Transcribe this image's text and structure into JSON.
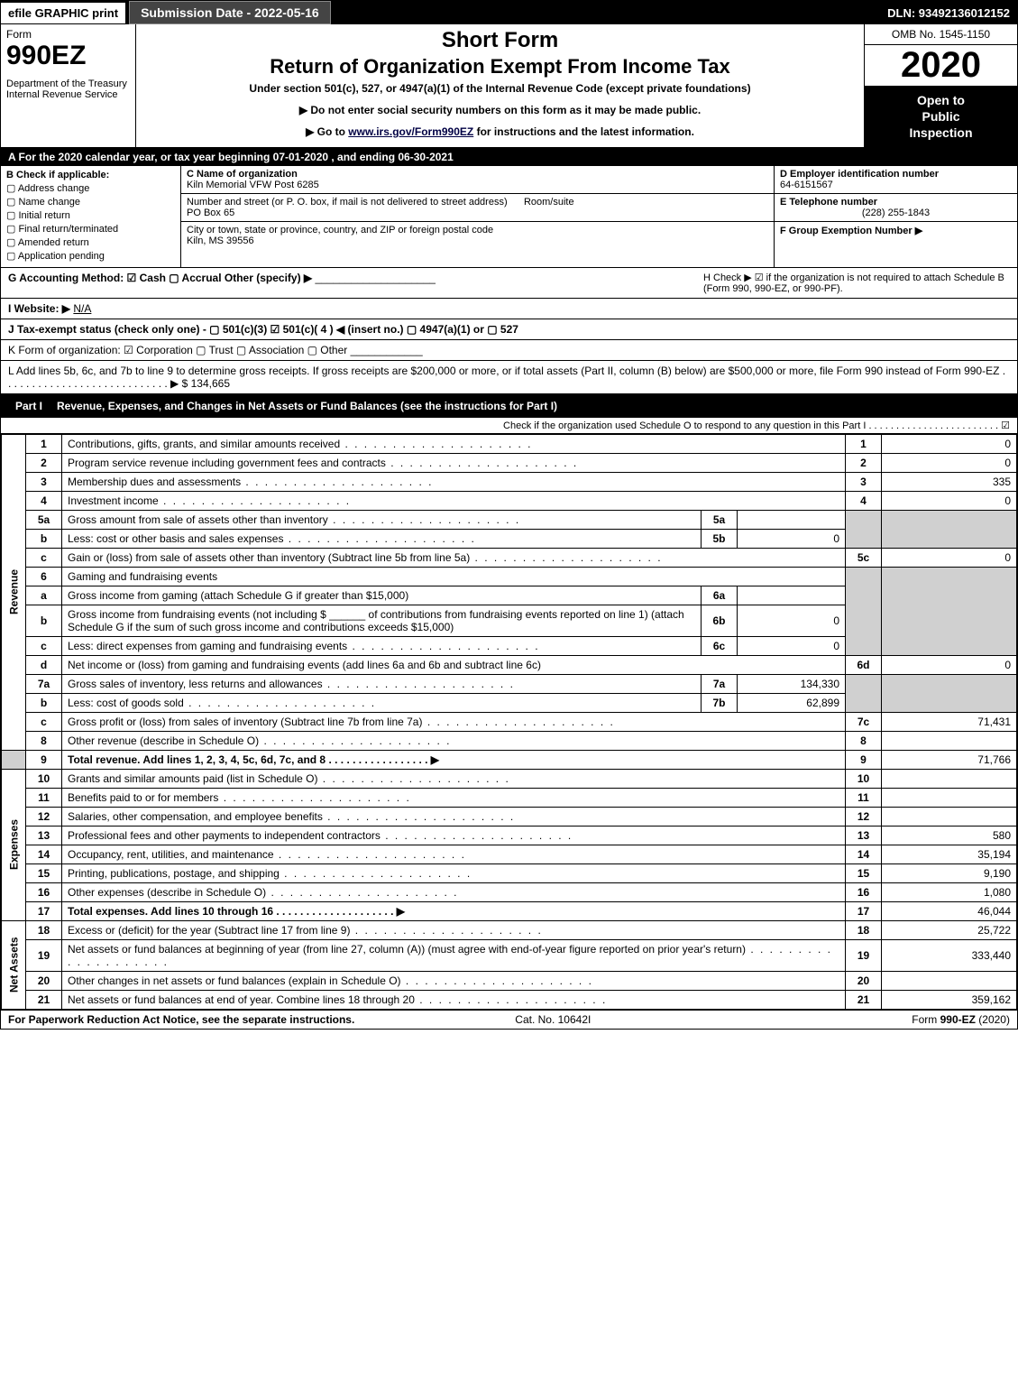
{
  "top": {
    "efile": "efile GRAPHIC print",
    "submission_label": "Submission Date - 2022-05-16",
    "dln": "DLN: 93492136012152"
  },
  "header": {
    "form_label": "Form",
    "form_number": "990EZ",
    "dept1": "Department of the Treasury",
    "dept2": "Internal Revenue Service",
    "short_form": "Short Form",
    "title": "Return of Organization Exempt From Income Tax",
    "under": "Under section 501(c), 527, or 4947(a)(1) of the Internal Revenue Code (except private foundations)",
    "notice1": "▶ Do not enter social security numbers on this form as it may be made public.",
    "notice2_pre": "▶ Go to ",
    "notice2_link": "www.irs.gov/Form990EZ",
    "notice2_post": " for instructions and the latest information.",
    "omb": "OMB No. 1545-1150",
    "year": "2020",
    "inspection1": "Open to",
    "inspection2": "Public",
    "inspection3": "Inspection"
  },
  "section_a": "A For the 2020 calendar year, or tax year beginning 07-01-2020 , and ending 06-30-2021",
  "box_b": {
    "title": "B Check if applicable:",
    "items": [
      "Address change",
      "Name change",
      "Initial return",
      "Final return/terminated",
      "Amended return",
      "Application pending"
    ]
  },
  "box_c": {
    "c_label": "C Name of organization",
    "org_name": "Kiln Memorial VFW Post 6285",
    "addr_label": "Number and street (or P. O. box, if mail is not delivered to street address)",
    "room_label": "Room/suite",
    "address": "PO Box 65",
    "city_label": "City or town, state or province, country, and ZIP or foreign postal code",
    "city": "Kiln, MS  39556"
  },
  "box_right": {
    "d_label": "D Employer identification number",
    "ein": "64-6151567",
    "e_label": "E Telephone number",
    "phone": "(228) 255-1843",
    "f_label": "F Group Exemption Number  ▶"
  },
  "meta": {
    "g": "G Accounting Method:  ☑ Cash  ▢ Accrual  Other (specify) ▶",
    "h": "H  Check ▶ ☑ if the organization is not required to attach Schedule B (Form 990, 990-EZ, or 990-PF).",
    "i_label": "I Website: ▶",
    "i_value": "N/A",
    "j": "J Tax-exempt status (check only one) - ▢ 501(c)(3) ☑ 501(c)( 4 ) ◀ (insert no.) ▢ 4947(a)(1) or ▢ 527",
    "k": "K Form of organization:  ☑ Corporation  ▢ Trust  ▢ Association  ▢ Other",
    "l_text": "L Add lines 5b, 6c, and 7b to line 9 to determine gross receipts. If gross receipts are $200,000 or more, or if total assets (Part II, column (B) below) are $500,000 or more, file Form 990 instead of Form 990-EZ . . . . . . . . . . . . . . . . . . . . . . . . . . . . ▶",
    "l_amount": "$ 134,665"
  },
  "part1": {
    "label": "Part I",
    "title": "Revenue, Expenses, and Changes in Net Assets or Fund Balances (see the instructions for Part I)",
    "check": "Check if the organization used Schedule O to respond to any question in this Part I . . . . . . . . . . . . . . . . . . . . . . . . ☑"
  },
  "section_labels": {
    "revenue": "Revenue",
    "expenses": "Expenses",
    "netassets": "Net Assets"
  },
  "lines": {
    "1": {
      "text": "Contributions, gifts, grants, and similar amounts received",
      "num": "1",
      "amt": "0"
    },
    "2": {
      "text": "Program service revenue including government fees and contracts",
      "num": "2",
      "amt": "0"
    },
    "3": {
      "text": "Membership dues and assessments",
      "num": "3",
      "amt": "335"
    },
    "4": {
      "text": "Investment income",
      "num": "4",
      "amt": "0"
    },
    "5a": {
      "text": "Gross amount from sale of assets other than inventory",
      "inum": "5a",
      "iamt": ""
    },
    "5b": {
      "text": "Less: cost or other basis and sales expenses",
      "inum": "5b",
      "iamt": "0"
    },
    "5c": {
      "text": "Gain or (loss) from sale of assets other than inventory (Subtract line 5b from line 5a)",
      "num": "5c",
      "amt": "0"
    },
    "6": {
      "text": "Gaming and fundraising events"
    },
    "6a": {
      "text": "Gross income from gaming (attach Schedule G if greater than $15,000)",
      "inum": "6a",
      "iamt": ""
    },
    "6b": {
      "text_pre": "Gross income from fundraising events (not including $",
      "text_post": " of contributions from fundraising events reported on line 1) (attach Schedule G if the sum of such gross income and contributions exceeds $15,000)",
      "inum": "6b",
      "iamt": "0"
    },
    "6c": {
      "text": "Less: direct expenses from gaming and fundraising events",
      "inum": "6c",
      "iamt": "0"
    },
    "6d": {
      "text": "Net income or (loss) from gaming and fundraising events (add lines 6a and 6b and subtract line 6c)",
      "num": "6d",
      "amt": "0"
    },
    "7a": {
      "text": "Gross sales of inventory, less returns and allowances",
      "inum": "7a",
      "iamt": "134,330"
    },
    "7b": {
      "text": "Less: cost of goods sold",
      "inum": "7b",
      "iamt": "62,899"
    },
    "7c": {
      "text": "Gross profit or (loss) from sales of inventory (Subtract line 7b from line 7a)",
      "num": "7c",
      "amt": "71,431"
    },
    "8": {
      "text": "Other revenue (describe in Schedule O)",
      "num": "8",
      "amt": ""
    },
    "9": {
      "text": "Total revenue. Add lines 1, 2, 3, 4, 5c, 6d, 7c, and 8  . . . . . . . . . . . . . . . . . ▶",
      "num": "9",
      "amt": "71,766"
    },
    "10": {
      "text": "Grants and similar amounts paid (list in Schedule O)",
      "num": "10",
      "amt": ""
    },
    "11": {
      "text": "Benefits paid to or for members",
      "num": "11",
      "amt": ""
    },
    "12": {
      "text": "Salaries, other compensation, and employee benefits",
      "num": "12",
      "amt": ""
    },
    "13": {
      "text": "Professional fees and other payments to independent contractors",
      "num": "13",
      "amt": "580"
    },
    "14": {
      "text": "Occupancy, rent, utilities, and maintenance",
      "num": "14",
      "amt": "35,194"
    },
    "15": {
      "text": "Printing, publications, postage, and shipping",
      "num": "15",
      "amt": "9,190"
    },
    "16": {
      "text": "Other expenses (describe in Schedule O)",
      "num": "16",
      "amt": "1,080"
    },
    "17": {
      "text": "Total expenses. Add lines 10 through 16  . . . . . . . . . . . . . . . . . . . . ▶",
      "num": "17",
      "amt": "46,044"
    },
    "18": {
      "text": "Excess or (deficit) for the year (Subtract line 17 from line 9)",
      "num": "18",
      "amt": "25,722"
    },
    "19": {
      "text": "Net assets or fund balances at beginning of year (from line 27, column (A)) (must agree with end-of-year figure reported on prior year's return)",
      "num": "19",
      "amt": "333,440"
    },
    "20": {
      "text": "Other changes in net assets or fund balances (explain in Schedule O)",
      "num": "20",
      "amt": ""
    },
    "21": {
      "text": "Net assets or fund balances at end of year. Combine lines 18 through 20",
      "num": "21",
      "amt": "359,162"
    }
  },
  "footer": {
    "left": "For Paperwork Reduction Act Notice, see the separate instructions.",
    "center": "Cat. No. 10642I",
    "right": "Form 990-EZ (2020)"
  }
}
